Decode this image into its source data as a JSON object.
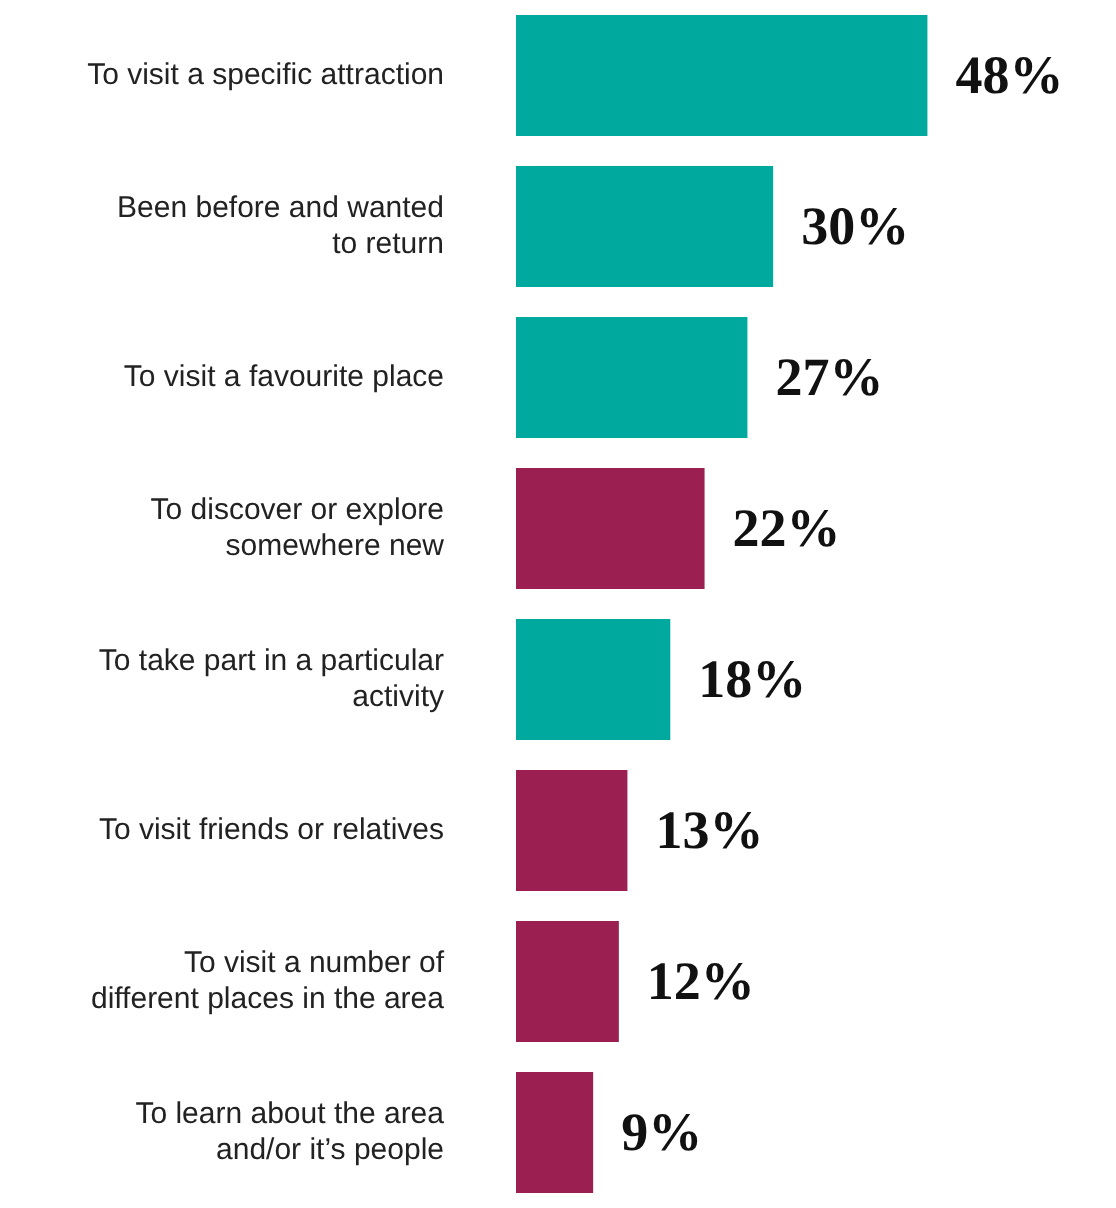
{
  "chart_data": {
    "type": "bar",
    "orientation": "horizontal",
    "categories": [
      "To visit a specific attraction",
      "Been before and wanted to return",
      "To visit a favourite place",
      "To discover or explore somewhere new",
      "To take part in a particular activity",
      "To visit friends or relatives",
      "To visit a number of different places in the area",
      "To learn about the area and/or it’s people"
    ],
    "values": [
      48,
      30,
      27,
      22,
      18,
      13,
      12,
      9
    ],
    "colors": [
      "#00a99d",
      "#00a99d",
      "#00a99d",
      "#9c1f52",
      "#00a99d",
      "#9c1f52",
      "#9c1f52",
      "#9c1f52"
    ],
    "value_labels": [
      "48%",
      "30%",
      "27%",
      "22%",
      "18%",
      "13%",
      "12%",
      "9%"
    ],
    "legend": false
  }
}
